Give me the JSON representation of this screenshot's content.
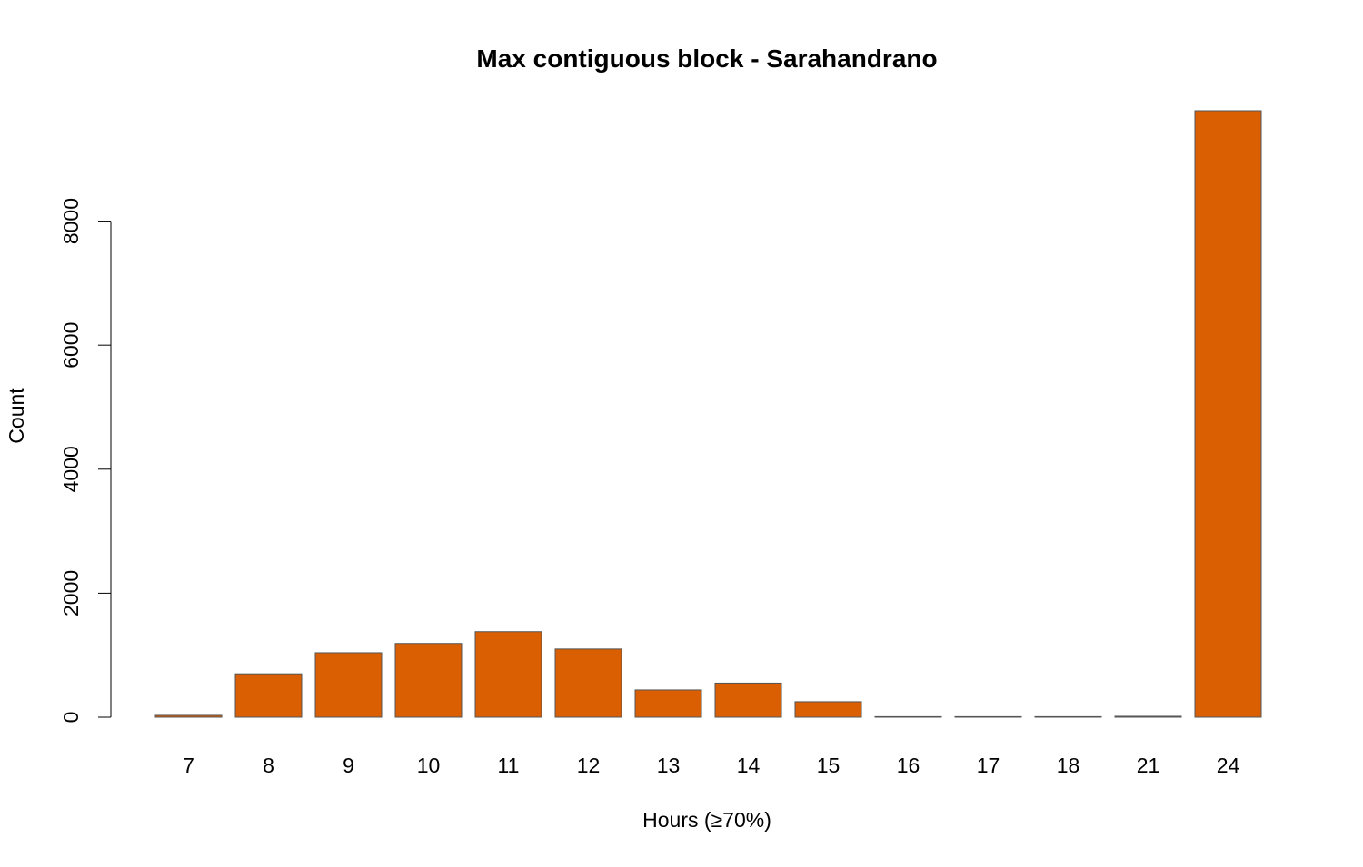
{
  "chart_data": {
    "type": "bar",
    "title": "Max contiguous block - Sarahandrano",
    "xlabel": "Hours (≥70%)",
    "ylabel": "Count",
    "categories": [
      "7",
      "8",
      "9",
      "10",
      "11",
      "12",
      "13",
      "14",
      "15",
      "16",
      "17",
      "18",
      "21",
      "24"
    ],
    "values": [
      30,
      700,
      1040,
      1190,
      1380,
      1100,
      440,
      550,
      250,
      5,
      5,
      5,
      15,
      9780
    ],
    "ylim": [
      0,
      9780
    ],
    "yticks": [
      0,
      2000,
      4000,
      6000,
      8000
    ],
    "grid": false,
    "legend": "none",
    "bar_color": "#D95F02"
  }
}
